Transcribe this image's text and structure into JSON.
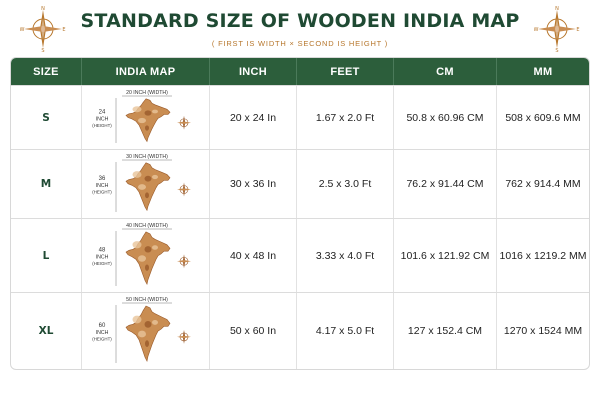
{
  "title": "STANDARD SIZE OF WOODEN INDIA MAP",
  "subtitle": "( FIRST IS WIDTH × SECOND IS HEIGHT )",
  "compass_letters": {
    "n": "N",
    "e": "E",
    "s": "S",
    "w": "W"
  },
  "colors": {
    "header_bg": "#2c5e3b",
    "title": "#1f4a33",
    "accent": "#b7772d",
    "wood_light": "#e8c49a",
    "wood_mid": "#c98d52",
    "wood_dark": "#9a5a2a"
  },
  "headers": [
    "SIZE",
    "INDIA MAP",
    "INCH",
    "FEET",
    "CM",
    "MM"
  ],
  "rows": [
    {
      "size": "S",
      "width_label": "20 INCH (WIDTH)",
      "height_num": "24",
      "height_unit": "INCH",
      "height_word": "(HEIGHT)",
      "inch": "20 x 24 In",
      "feet": "1.67 x 2.0 Ft",
      "cm": "50.8 x 60.96 CM",
      "mm": "508 x 609.6 MM"
    },
    {
      "size": "M",
      "width_label": "30 INCH (WIDTH)",
      "height_num": "36",
      "height_unit": "INCH",
      "height_word": "(HEIGHT)",
      "inch": "30 x 36 In",
      "feet": "2.5 x 3.0 Ft",
      "cm": "76.2 x 91.44 CM",
      "mm": "762 x 914.4 MM"
    },
    {
      "size": "L",
      "width_label": "40 INCH (WIDTH)",
      "height_num": "48",
      "height_unit": "INCH",
      "height_word": "(HEIGHT)",
      "inch": "40 x 48 In",
      "feet": "3.33 x 4.0 Ft",
      "cm": "101.6 x 121.92 CM",
      "mm": "1016 x 1219.2 MM"
    },
    {
      "size": "XL",
      "width_label": "50 INCH (WIDTH)",
      "height_num": "60",
      "height_unit": "INCH",
      "height_word": "(HEIGHT)",
      "inch": "50 x 60 In",
      "feet": "4.17 x 5.0 Ft",
      "cm": "127 x 152.4 CM",
      "mm": "1270 x 1524 MM"
    }
  ]
}
